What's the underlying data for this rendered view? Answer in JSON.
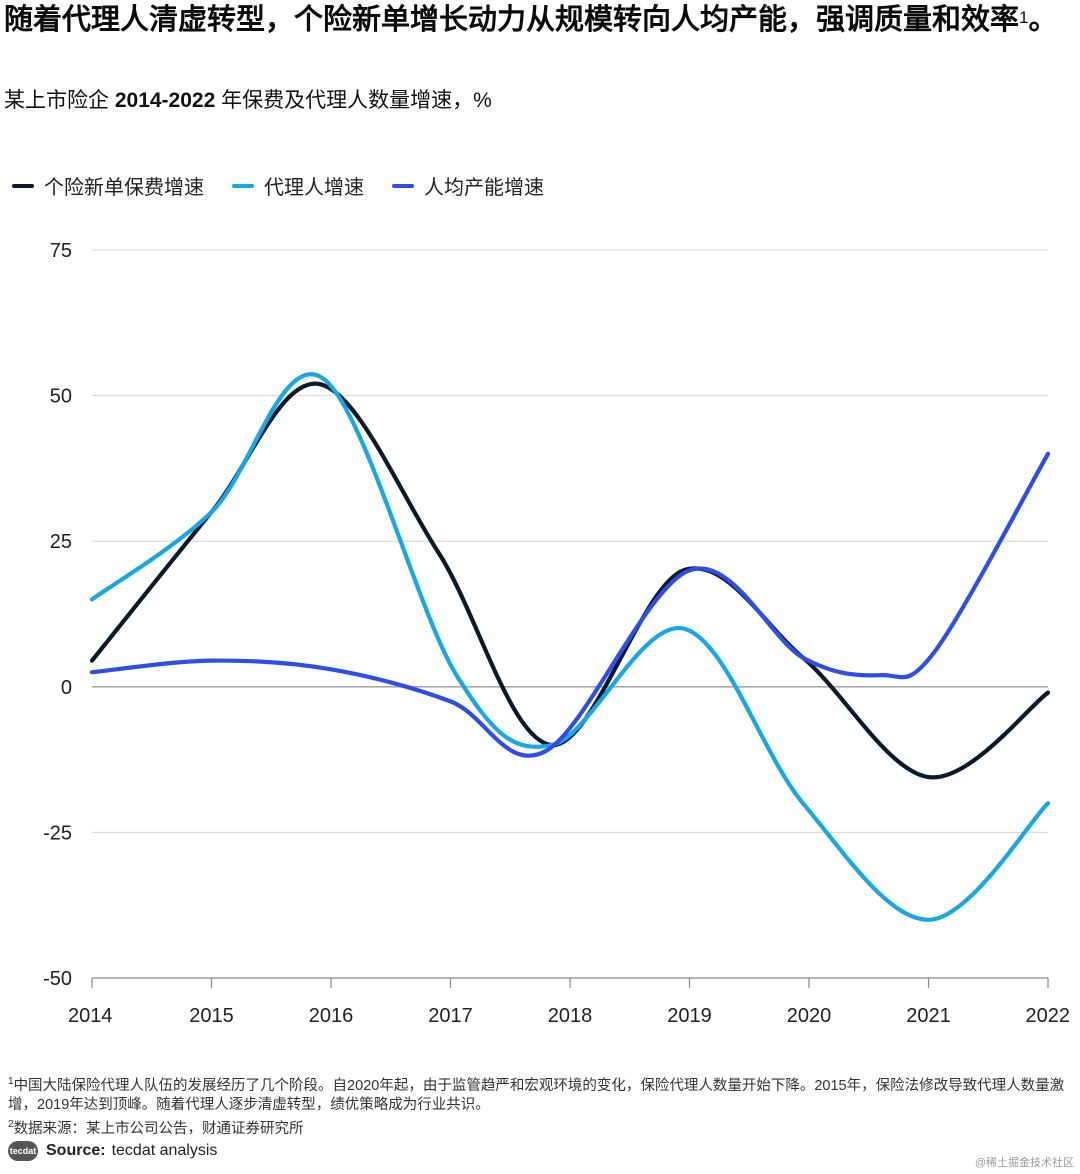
{
  "header": {
    "title": "随着代理人清虚转型，个险新单增长动力从规模转向人均产能，强调质量和效率",
    "title_footnote_mark": "1",
    "title_end": "。",
    "subtitle_prefix": "某上市险企",
    "subtitle_years": "2014-2022",
    "subtitle_suffix": "年保费及代理人数量增速，%"
  },
  "chart_data": {
    "type": "line",
    "title": "某上市险企 2014-2022 年保费及代理人数量增速，%",
    "xlabel": "",
    "ylabel": "%",
    "x": [
      2014,
      2015,
      2016,
      2017,
      2018,
      2019,
      2020,
      2021,
      2022
    ],
    "x_tick_labels": [
      "2014",
      "2015",
      "2016",
      "2017",
      "2018",
      "2019",
      "2020",
      "2021",
      "2022"
    ],
    "y_ticks": [
      75,
      50,
      25,
      0,
      -25,
      -50
    ],
    "y_tick_labels": [
      "75",
      "50",
      "25",
      "0",
      "-25",
      "-50"
    ],
    "ylim": [
      -50,
      75
    ],
    "grid": true,
    "legend_position": "top-left",
    "series": [
      {
        "name": "个险新单保费增速",
        "color": "#0b1a2b",
        "points": [
          [
            2014,
            4.5
          ],
          [
            2015,
            30
          ],
          [
            2015.9,
            52
          ],
          [
            2016.9,
            23
          ],
          [
            2017.85,
            -10
          ],
          [
            2018.95,
            20
          ],
          [
            2019.95,
            5
          ],
          [
            2021.0,
            -15.5
          ],
          [
            2022,
            -1
          ]
        ]
      },
      {
        "name": "代理人增速",
        "color": "#17a8e3",
        "points": [
          [
            2014,
            15
          ],
          [
            2015,
            30
          ],
          [
            2015.93,
            53
          ],
          [
            2017.05,
            2
          ],
          [
            2017.85,
            -10
          ],
          [
            2018.95,
            10
          ],
          [
            2019.95,
            -20
          ],
          [
            2021.0,
            -40
          ],
          [
            2022,
            -20
          ]
        ]
      },
      {
        "name": "人均产能增速",
        "color": "#2f4de8",
        "points": [
          [
            2014,
            2.5
          ],
          [
            2015,
            4.5
          ],
          [
            2016,
            3
          ],
          [
            2017,
            -2.5
          ],
          [
            2017.8,
            -11
          ],
          [
            2019.0,
            20
          ],
          [
            2019.95,
            5
          ],
          [
            2020.6,
            2
          ],
          [
            2021.05,
            6
          ],
          [
            2022,
            40
          ]
        ]
      }
    ]
  },
  "footnotes": {
    "note1_mark": "1",
    "note1": "中国大陆保险代理人队伍的发展经历了几个阶段。自2020年起，由于监管趋严和宏观环境的变化，保险代理人数量开始下降。2015年，保险法修改导致代理人数量激增，2019年达到顶峰。随着代理人逐步清虚转型，绩优策略成为行业共识。",
    "note2_mark": "2",
    "note2": "数据来源：某上市公司公告，财通证券研究所"
  },
  "source": {
    "logo_text": "tecdat",
    "label": "Source:",
    "text": "tecdat analysis"
  },
  "watermark": "@稀土掘金技术社区"
}
